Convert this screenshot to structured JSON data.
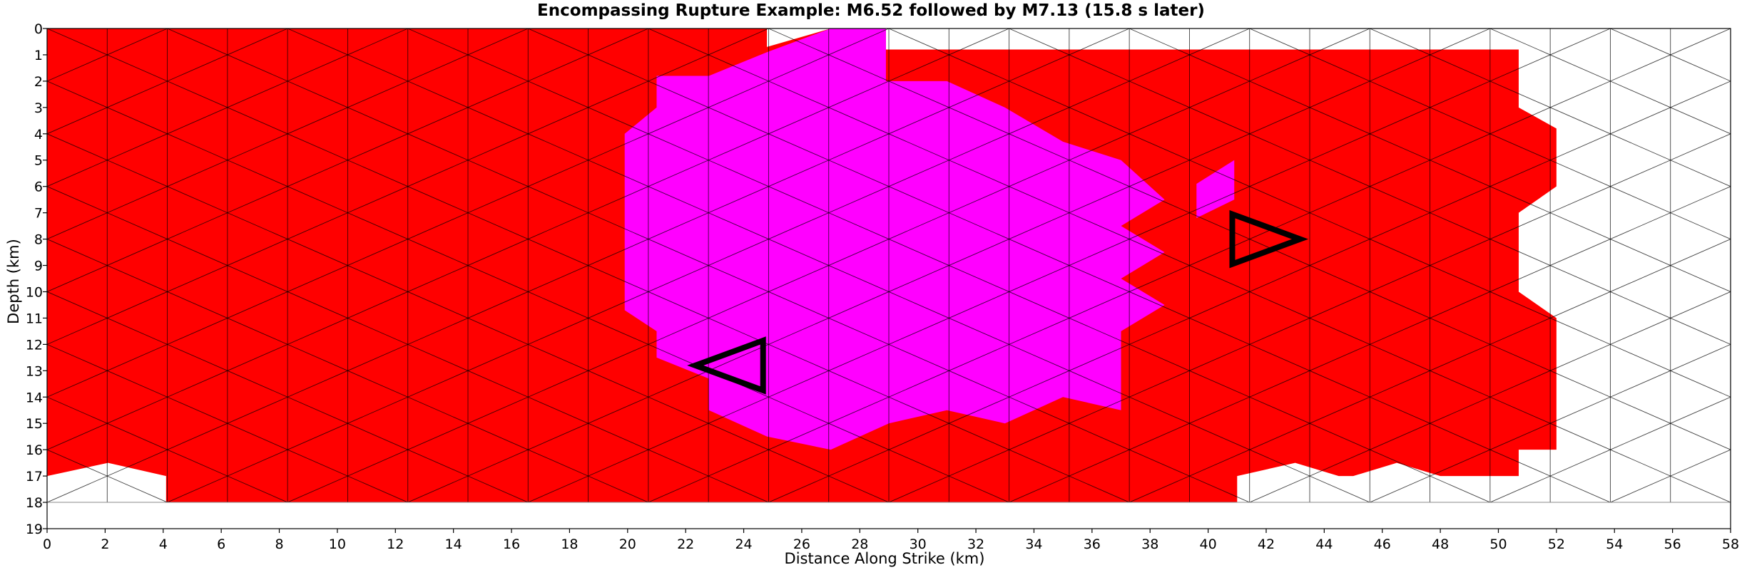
{
  "chart_data": {
    "type": "triangular-mesh",
    "title": "Encompassing Rupture Example: M6.52 followed by M7.13 (15.8 s later)",
    "xlabel": "Distance Along Strike (km)",
    "ylabel": "Depth (km)",
    "xlim": [
      0,
      58
    ],
    "ylim": [
      0,
      19
    ],
    "y_inverted": true,
    "xticks": [
      0,
      2,
      4,
      6,
      8,
      10,
      12,
      14,
      16,
      18,
      20,
      22,
      24,
      26,
      28,
      30,
      32,
      34,
      36,
      38,
      40,
      42,
      44,
      46,
      48,
      50,
      52,
      54,
      56,
      58
    ],
    "yticks": [
      0,
      1,
      2,
      3,
      4,
      5,
      6,
      7,
      8,
      9,
      10,
      11,
      12,
      13,
      14,
      15,
      16,
      17,
      18,
      19
    ],
    "mesh": {
      "x_min": 0,
      "x_max": 58,
      "column_width_km": 2.07,
      "depth_min": 0,
      "depth_max": 18,
      "row_height_km": 2.0
    },
    "events": [
      {
        "name": "M6.52",
        "color": "#ff00ff",
        "hypocenter": {
          "x": 23.5,
          "depth": 12.8
        },
        "direction": "left"
      },
      {
        "name": "M7.13",
        "color": "#ff0000",
        "delay_s": 15.8,
        "hypocenter": {
          "x": 42.0,
          "depth": 8.0
        },
        "direction": "right"
      }
    ],
    "regions": {
      "red": [
        [
          [
            0,
            0
          ],
          [
            24.8,
            0
          ],
          [
            24.8,
            0.7
          ],
          [
            27.0,
            0
          ],
          [
            28.9,
            0
          ],
          [
            28.9,
            0.8
          ],
          [
            50.7,
            0.8
          ],
          [
            50.7,
            3.0
          ],
          [
            52.0,
            3.8
          ],
          [
            52.0,
            6.0
          ],
          [
            50.7,
            7.0
          ],
          [
            50.7,
            10.0
          ],
          [
            52.0,
            11.0
          ],
          [
            52.0,
            16.0
          ],
          [
            50.7,
            16.0
          ],
          [
            50.7,
            17.0
          ],
          [
            48.0,
            17.0
          ],
          [
            46.5,
            16.5
          ],
          [
            45.0,
            17.0
          ],
          [
            44.5,
            17.0
          ],
          [
            43.0,
            16.5
          ],
          [
            41.0,
            17.0
          ],
          [
            41.0,
            18.0
          ],
          [
            4.1,
            18.0
          ],
          [
            4.1,
            17.0
          ],
          [
            2.1,
            16.5
          ],
          [
            0,
            17.0
          ]
        ]
      ],
      "magenta": [
        [
          [
            27.0,
            0
          ],
          [
            28.9,
            0
          ],
          [
            28.9,
            0.8
          ],
          [
            28.9,
            2.0
          ],
          [
            31.0,
            2.0
          ],
          [
            33.0,
            3.0
          ],
          [
            35.0,
            4.3
          ],
          [
            37.0,
            5.0
          ],
          [
            38.5,
            6.5
          ],
          [
            37.0,
            7.5
          ],
          [
            38.5,
            8.5
          ],
          [
            37.0,
            9.5
          ],
          [
            38.5,
            10.5
          ],
          [
            37.0,
            11.5
          ],
          [
            37.0,
            14.5
          ],
          [
            35.0,
            14.0
          ],
          [
            33.0,
            15.0
          ],
          [
            31.0,
            14.5
          ],
          [
            29.0,
            15.0
          ],
          [
            27.0,
            16.0
          ],
          [
            24.8,
            15.5
          ],
          [
            22.8,
            14.5
          ],
          [
            22.8,
            13.3
          ],
          [
            21.0,
            12.5
          ],
          [
            21.0,
            11.5
          ],
          [
            19.9,
            10.7
          ],
          [
            19.9,
            4.0
          ],
          [
            21.0,
            3.0
          ],
          [
            21.0,
            1.8
          ],
          [
            22.8,
            1.8
          ],
          [
            22.8,
            1.8
          ],
          [
            24.8,
            0.9
          ],
          [
            27.0,
            0
          ]
        ],
        [
          [
            39.6,
            5.9
          ],
          [
            40.9,
            5.0
          ],
          [
            40.9,
            6.5
          ],
          [
            39.6,
            7.2
          ]
        ]
      ]
    }
  }
}
